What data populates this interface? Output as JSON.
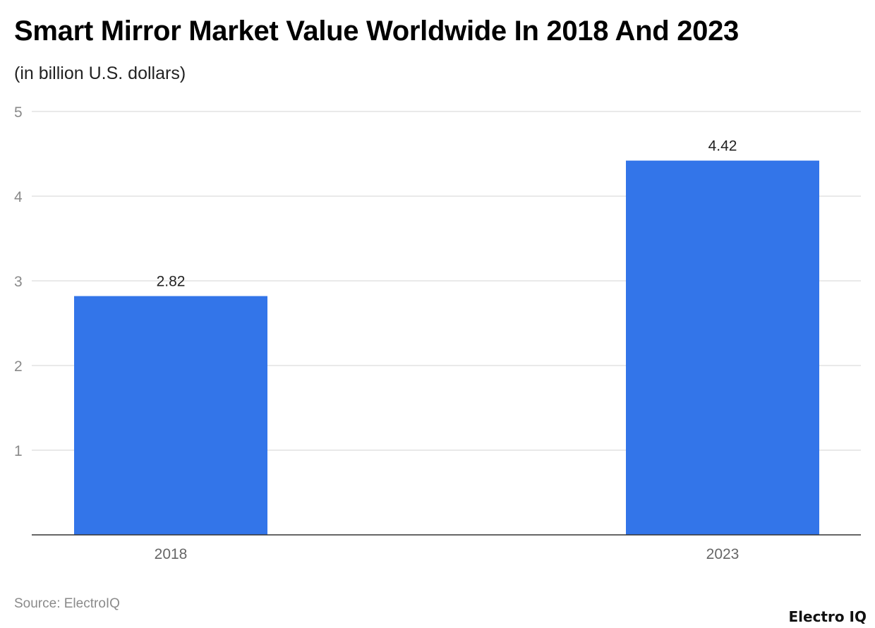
{
  "chart_data": {
    "type": "bar",
    "title": "Smart Mirror Market Value Worldwide In 2018 And 2023",
    "subtitle": "(in billion U.S. dollars)",
    "categories": [
      "2018",
      "2023"
    ],
    "values": [
      2.82,
      4.42
    ],
    "value_labels": [
      "2.82",
      "4.42"
    ],
    "ylim": [
      0,
      5
    ],
    "yticks": [
      "1",
      "2",
      "3",
      "4",
      "5"
    ],
    "grid": true,
    "bar_color": "#3375e9"
  },
  "source": "Source: ElectroIQ",
  "logo": "Electro IQ"
}
